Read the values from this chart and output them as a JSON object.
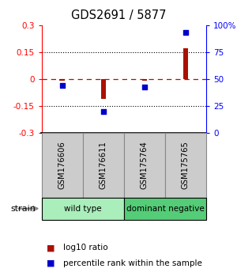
{
  "title": "GDS2691 / 5877",
  "samples": [
    "GSM176606",
    "GSM176611",
    "GSM175764",
    "GSM175765"
  ],
  "log10_ratio": [
    -0.01,
    -0.11,
    -0.01,
    0.17
  ],
  "percentile_rank": [
    44,
    20,
    43,
    93
  ],
  "ylim_left": [
    -0.3,
    0.3
  ],
  "ylim_right": [
    0,
    100
  ],
  "yticks_left": [
    -0.3,
    -0.15,
    0,
    0.15,
    0.3
  ],
  "yticks_right": [
    0,
    25,
    50,
    75,
    100
  ],
  "bar_color": "#aa1100",
  "scatter_color": "#0000cc",
  "zero_line_color": "#cc0000",
  "dotted_line_color": "#000000",
  "groups": [
    {
      "label": "wild type",
      "samples": [
        0,
        1
      ],
      "color": "#aaeebb"
    },
    {
      "label": "dominant negative",
      "samples": [
        2,
        3
      ],
      "color": "#55cc77"
    }
  ],
  "bar_width": 0.12,
  "legend_bar_label": "log10 ratio",
  "legend_scatter_label": "percentile rank within the sample",
  "strain_label": "strain",
  "background_color": "#ffffff",
  "plot_bg_color": "#ffffff",
  "label_box_color": "#cccccc",
  "group_border_color": "#000000"
}
